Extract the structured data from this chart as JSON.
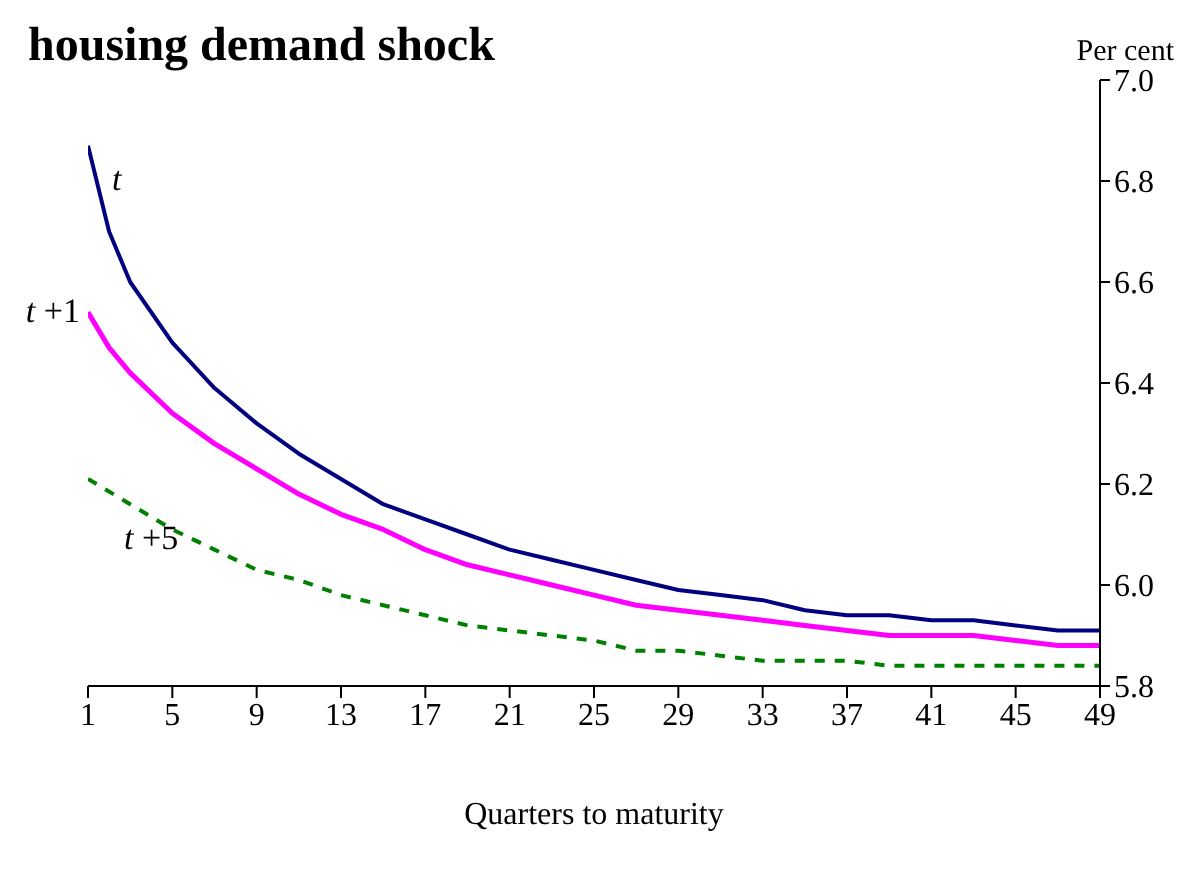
{
  "chart_data": {
    "type": "line",
    "title": "housing demand shock",
    "ylabel": "Per cent",
    "xlabel": "Quarters to maturity",
    "xlim": [
      1,
      49
    ],
    "xticks": [
      1,
      5,
      9,
      13,
      17,
      21,
      25,
      29,
      33,
      37,
      41,
      45,
      49
    ],
    "ylim": [
      5.8,
      7.0
    ],
    "yticks": [
      {
        "value": 5.8,
        "label": "5.8"
      },
      {
        "value": 6,
        "label": "6.0"
      },
      {
        "value": 6.2,
        "label": "6.2"
      },
      {
        "value": 6.4,
        "label": "6.4"
      },
      {
        "value": 6.6,
        "label": "6.6"
      },
      {
        "value": 6.8,
        "label": "6.8"
      },
      {
        "value": 7,
        "label": "7.0"
      }
    ],
    "marker": "none",
    "series": [
      {
        "color": "#000080",
        "line_style": "solid",
        "x": [
          1,
          2,
          3,
          5,
          7,
          9,
          11,
          13,
          15,
          17,
          19,
          21,
          23,
          25,
          27,
          29,
          31,
          33,
          35,
          37,
          39,
          41,
          43,
          45,
          47,
          49
        ],
        "values": [
          6.87,
          6.7,
          6.6,
          6.48,
          6.39,
          6.32,
          6.26,
          6.21,
          6.16,
          6.13,
          6.1,
          6.07,
          6.05,
          6.03,
          6.01,
          5.99,
          5.98,
          5.97,
          5.95,
          5.94,
          5.94,
          5.93,
          5.93,
          5.92,
          5.91,
          5.91
        ]
      },
      {
        "color": "#ff00ff",
        "line_style": "solid",
        "x": [
          1,
          2,
          3,
          5,
          7,
          9,
          11,
          13,
          15,
          17,
          19,
          21,
          23,
          25,
          27,
          29,
          31,
          33,
          35,
          37,
          39,
          41,
          43,
          45,
          47,
          49
        ],
        "values": [
          6.54,
          6.47,
          6.42,
          6.34,
          6.28,
          6.23,
          6.18,
          6.14,
          6.11,
          6.07,
          6.04,
          6.02,
          6.0,
          5.98,
          5.96,
          5.95,
          5.94,
          5.93,
          5.92,
          5.91,
          5.9,
          5.9,
          5.9,
          5.89,
          5.88,
          5.88
        ]
      },
      {
        "color": "#008000",
        "line_style": "dashed",
        "x": [
          1,
          3,
          5,
          7,
          9,
          11,
          13,
          15,
          17,
          19,
          21,
          23,
          25,
          27,
          29,
          31,
          33,
          35,
          37,
          39,
          41,
          43,
          45,
          47,
          49
        ],
        "values": [
          6.21,
          6.16,
          6.11,
          6.07,
          6.03,
          6.01,
          5.98,
          5.96,
          5.94,
          5.92,
          5.91,
          5.9,
          5.89,
          5.87,
          5.87,
          5.86,
          5.85,
          5.85,
          5.85,
          5.84,
          5.84,
          5.84,
          5.84,
          5.84,
          5.84
        ]
      }
    ],
    "annotations": [
      "t",
      "t +1",
      "t +5"
    ]
  }
}
